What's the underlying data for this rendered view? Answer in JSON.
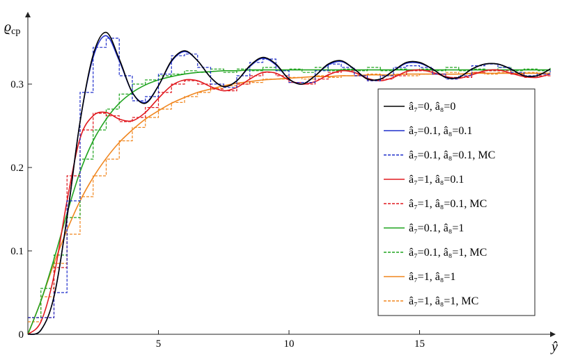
{
  "chart_data": {
    "type": "line",
    "title": "",
    "xlabel": "ŷ",
    "ylabel": "ϱ_cp",
    "ylabel_main": "ϱ",
    "ylabel_sub": "cp",
    "xlim": [
      0,
      20
    ],
    "ylim": [
      0,
      0.38
    ],
    "xticks": [
      5,
      10,
      15
    ],
    "yticks": [
      0,
      0.1,
      0.2,
      0.3
    ],
    "ytick_labels": [
      "0",
      "0.1",
      "0.2",
      "0.3"
    ],
    "grid": false,
    "legend_position": "right",
    "series": [
      {
        "name": "â₇=0, â₈=0",
        "color": "#000000",
        "style": "solid",
        "x": [
          0,
          0.5,
          1,
          1.5,
          2,
          2.5,
          3,
          3.5,
          4,
          4.5,
          5,
          5.5,
          6,
          6.5,
          7,
          7.5,
          8,
          8.5,
          9,
          9.5,
          10,
          10.5,
          11,
          11.5,
          12,
          12.5,
          13,
          13.5,
          14,
          14.5,
          15,
          15.5,
          16,
          16.5,
          17,
          17.5,
          18,
          18.5,
          19,
          19.5,
          20
        ],
        "y": [
          0,
          0.005,
          0.045,
          0.14,
          0.255,
          0.335,
          0.362,
          0.33,
          0.29,
          0.277,
          0.298,
          0.328,
          0.34,
          0.328,
          0.308,
          0.297,
          0.304,
          0.322,
          0.332,
          0.324,
          0.306,
          0.3,
          0.31,
          0.324,
          0.328,
          0.318,
          0.306,
          0.306,
          0.316,
          0.326,
          0.326,
          0.318,
          0.308,
          0.308,
          0.318,
          0.324,
          0.324,
          0.318,
          0.31,
          0.31,
          0.318
        ]
      },
      {
        "name": "â₇=0.1, â₈=0.1",
        "color": "#1f2ecc",
        "style": "solid",
        "x": [
          0,
          0.5,
          1,
          1.5,
          2,
          2.5,
          3,
          3.5,
          4,
          4.5,
          5,
          5.5,
          6,
          6.5,
          7,
          7.5,
          8,
          8.5,
          9,
          9.5,
          10,
          10.5,
          11,
          11.5,
          12,
          12.5,
          13,
          13.5,
          14,
          14.5,
          15,
          15.5,
          16,
          16.5,
          17,
          17.5,
          18,
          18.5,
          19,
          19.5,
          20
        ],
        "y": [
          0,
          0.005,
          0.045,
          0.14,
          0.255,
          0.332,
          0.358,
          0.328,
          0.29,
          0.278,
          0.298,
          0.327,
          0.339,
          0.328,
          0.308,
          0.297,
          0.304,
          0.321,
          0.331,
          0.323,
          0.306,
          0.3,
          0.31,
          0.323,
          0.327,
          0.318,
          0.306,
          0.306,
          0.316,
          0.325,
          0.325,
          0.318,
          0.308,
          0.308,
          0.318,
          0.324,
          0.324,
          0.318,
          0.31,
          0.31,
          0.318
        ]
      },
      {
        "name": "â₇=0.1, â₈=0.1, MC",
        "color": "#1f2ecc",
        "style": "dashed",
        "x": [
          0,
          0.5,
          1,
          1.5,
          2,
          2.5,
          3,
          3.5,
          4,
          4.5,
          5,
          5.5,
          6,
          6.5,
          7,
          7.5,
          8,
          8.5,
          9,
          9.5,
          10,
          10.5,
          11,
          11.5,
          12,
          12.5,
          13,
          13.5,
          14,
          14.5,
          15,
          15.5,
          16,
          16.5,
          17,
          17.5,
          18,
          18.5,
          19,
          19.5,
          20
        ],
        "y": [
          0.02,
          0.02,
          0.05,
          0.16,
          0.29,
          0.344,
          0.355,
          0.31,
          0.28,
          0.285,
          0.312,
          0.334,
          0.336,
          0.32,
          0.3,
          0.296,
          0.31,
          0.326,
          0.33,
          0.316,
          0.302,
          0.302,
          0.316,
          0.324,
          0.32,
          0.31,
          0.304,
          0.31,
          0.32,
          0.322,
          0.32,
          0.312,
          0.306,
          0.31,
          0.322,
          0.324,
          0.32,
          0.314,
          0.31,
          0.312,
          0.316
        ]
      },
      {
        "name": "â₇=1, â₈=0.1",
        "color": "#e0181e",
        "style": "solid",
        "x": [
          0,
          0.5,
          1,
          1.5,
          2,
          2.5,
          3,
          3.5,
          4,
          4.5,
          5,
          5.5,
          6,
          6.5,
          7,
          7.5,
          8,
          8.5,
          9,
          9.5,
          10,
          10.5,
          11,
          11.5,
          12,
          12.5,
          13,
          13.5,
          14,
          14.5,
          15,
          15.5,
          16,
          16.5,
          17,
          17.5,
          18,
          18.5,
          19,
          19.5,
          20
        ],
        "y": [
          0,
          0.015,
          0.07,
          0.16,
          0.235,
          0.262,
          0.266,
          0.258,
          0.256,
          0.266,
          0.283,
          0.298,
          0.305,
          0.304,
          0.297,
          0.292,
          0.296,
          0.306,
          0.314,
          0.313,
          0.305,
          0.3,
          0.303,
          0.311,
          0.316,
          0.314,
          0.307,
          0.304,
          0.308,
          0.315,
          0.317,
          0.314,
          0.309,
          0.307,
          0.311,
          0.316,
          0.317,
          0.313,
          0.309,
          0.308,
          0.312
        ]
      },
      {
        "name": "â₇=1, â₈=0.1, MC",
        "color": "#e0181e",
        "style": "dashed",
        "x": [
          0,
          0.5,
          1,
          1.5,
          2,
          2.5,
          3,
          3.5,
          4,
          4.5,
          5,
          5.5,
          6,
          6.5,
          7,
          7.5,
          8,
          8.5,
          9,
          9.5,
          10,
          10.5,
          11,
          11.5,
          12,
          12.5,
          13,
          13.5,
          14,
          14.5,
          15,
          15.5,
          16,
          16.5,
          17,
          17.5,
          18,
          18.5,
          19,
          19.5,
          20
        ],
        "y": [
          0.02,
          0.02,
          0.08,
          0.19,
          0.245,
          0.265,
          0.262,
          0.255,
          0.26,
          0.272,
          0.29,
          0.3,
          0.304,
          0.3,
          0.294,
          0.292,
          0.3,
          0.31,
          0.314,
          0.31,
          0.302,
          0.3,
          0.306,
          0.314,
          0.316,
          0.31,
          0.304,
          0.306,
          0.31,
          0.316,
          0.316,
          0.312,
          0.308,
          0.308,
          0.314,
          0.316,
          0.316,
          0.312,
          0.308,
          0.31,
          0.312
        ]
      },
      {
        "name": "â₇=0.1, â₈=1",
        "color": "#1fa31f",
        "style": "solid",
        "x": [
          0,
          0.5,
          1,
          1.5,
          2,
          2.5,
          3,
          3.5,
          4,
          4.5,
          5,
          5.5,
          6,
          6.5,
          7,
          7.5,
          8,
          8.5,
          9,
          9.5,
          10,
          10.5,
          11,
          11.5,
          12,
          12.5,
          13,
          13.5,
          14,
          14.5,
          15,
          15.5,
          16,
          16.5,
          17,
          17.5,
          18,
          18.5,
          19,
          19.5,
          20
        ],
        "y": [
          0,
          0.04,
          0.09,
          0.145,
          0.195,
          0.232,
          0.258,
          0.277,
          0.29,
          0.299,
          0.305,
          0.309,
          0.312,
          0.314,
          0.315,
          0.316,
          0.316,
          0.317,
          0.317,
          0.317,
          0.317,
          0.317,
          0.317,
          0.317,
          0.317,
          0.317,
          0.317,
          0.317,
          0.317,
          0.317,
          0.317,
          0.317,
          0.317,
          0.317,
          0.317,
          0.317,
          0.317,
          0.317,
          0.317,
          0.317,
          0.317
        ]
      },
      {
        "name": "â₇=0.1, â₈=1, MC",
        "color": "#1fa31f",
        "style": "dashed",
        "x": [
          0,
          0.5,
          1,
          1.5,
          2,
          2.5,
          3,
          3.5,
          4,
          4.5,
          5,
          5.5,
          6,
          6.5,
          7,
          7.5,
          8,
          8.5,
          9,
          9.5,
          10,
          10.5,
          11,
          11.5,
          12,
          12.5,
          13,
          13.5,
          14,
          14.5,
          15,
          15.5,
          16,
          16.5,
          17,
          17.5,
          18,
          18.5,
          19,
          19.5,
          20
        ],
        "y": [
          0.02,
          0.055,
          0.095,
          0.14,
          0.21,
          0.245,
          0.27,
          0.288,
          0.3,
          0.305,
          0.31,
          0.312,
          0.316,
          0.314,
          0.318,
          0.314,
          0.318,
          0.316,
          0.32,
          0.316,
          0.318,
          0.314,
          0.32,
          0.316,
          0.318,
          0.316,
          0.32,
          0.316,
          0.318,
          0.316,
          0.318,
          0.316,
          0.32,
          0.316,
          0.318,
          0.316,
          0.32,
          0.316,
          0.318,
          0.316,
          0.32
        ]
      },
      {
        "name": "â₇=1, â₈=1",
        "color": "#f0861f",
        "style": "solid",
        "x": [
          0,
          0.5,
          1,
          1.5,
          2,
          2.5,
          3,
          3.5,
          4,
          4.5,
          5,
          5.5,
          6,
          6.5,
          7,
          7.5,
          8,
          8.5,
          9,
          9.5,
          10,
          10.5,
          11,
          11.5,
          12,
          12.5,
          13,
          13.5,
          14,
          14.5,
          15,
          15.5,
          16,
          16.5,
          17,
          17.5,
          18,
          18.5,
          19,
          19.5,
          20
        ],
        "y": [
          0,
          0.04,
          0.085,
          0.125,
          0.16,
          0.188,
          0.211,
          0.23,
          0.245,
          0.258,
          0.268,
          0.277,
          0.284,
          0.29,
          0.294,
          0.298,
          0.301,
          0.303,
          0.305,
          0.306,
          0.307,
          0.308,
          0.309,
          0.309,
          0.31,
          0.31,
          0.311,
          0.311,
          0.311,
          0.312,
          0.312,
          0.312,
          0.312,
          0.312,
          0.313,
          0.313,
          0.313,
          0.313,
          0.313,
          0.313,
          0.313
        ]
      },
      {
        "name": "â₇=1, â₈=1, MC",
        "color": "#f0861f",
        "style": "dashed",
        "x": [
          0,
          0.5,
          1,
          1.5,
          2,
          2.5,
          3,
          3.5,
          4,
          4.5,
          5,
          5.5,
          6,
          6.5,
          7,
          7.5,
          8,
          8.5,
          9,
          9.5,
          10,
          10.5,
          11,
          11.5,
          12,
          12.5,
          13,
          13.5,
          14,
          14.5,
          15,
          15.5,
          16,
          16.5,
          17,
          17.5,
          18,
          18.5,
          19,
          19.5,
          20
        ],
        "y": [
          0.015,
          0.045,
          0.085,
          0.12,
          0.165,
          0.19,
          0.21,
          0.232,
          0.248,
          0.26,
          0.27,
          0.278,
          0.285,
          0.29,
          0.295,
          0.298,
          0.3,
          0.302,
          0.306,
          0.306,
          0.308,
          0.306,
          0.31,
          0.308,
          0.31,
          0.31,
          0.312,
          0.31,
          0.312,
          0.31,
          0.312,
          0.312,
          0.314,
          0.312,
          0.314,
          0.312,
          0.314,
          0.312,
          0.314,
          0.312,
          0.314
        ]
      }
    ]
  }
}
